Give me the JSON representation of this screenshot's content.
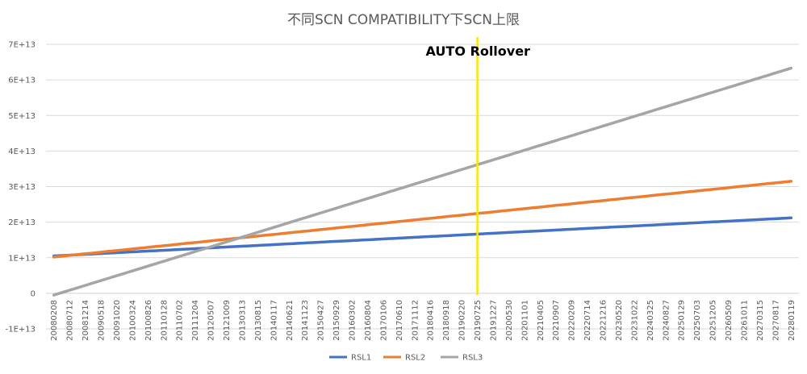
{
  "chart_data": {
    "type": "line",
    "title": "不同SCN COMPATIBILITY下SCN上限",
    "xlabel": "",
    "ylabel": "",
    "ylim": [
      -10000000000000.0,
      70000000000000.0
    ],
    "yticks": [
      -10000000000000.0,
      0,
      10000000000000.0,
      20000000000000.0,
      30000000000000.0,
      40000000000000.0,
      50000000000000.0,
      60000000000000.0,
      70000000000000.0
    ],
    "ytick_labels": [
      "-1E+13",
      "0",
      "1E+13",
      "2E+13",
      "3E+13",
      "4E+13",
      "5E+13",
      "6E+13",
      "7E+13"
    ],
    "x_tick_labels": [
      "20080208",
      "20080712",
      "20081214",
      "20090518",
      "20091020",
      "20100324",
      "20100826",
      "20110128",
      "20110702",
      "20111204",
      "20120507",
      "20121009",
      "20130313",
      "20130815",
      "20140117",
      "20140621",
      "20141123",
      "20150427",
      "20150929",
      "20160302",
      "20160804",
      "20170106",
      "20170610",
      "20171112",
      "20180416",
      "20180918",
      "20190220",
      "20190725",
      "20191227",
      "20200530",
      "20201101",
      "20210405",
      "20210907",
      "20220209",
      "20220714",
      "20221216",
      "20230520",
      "20231022",
      "20240325",
      "20240827",
      "20250129",
      "20250703",
      "20251205",
      "20260509",
      "20261011",
      "20270315",
      "20270817",
      "20280119"
    ],
    "grid": "horizontal",
    "legend_position": "bottom",
    "series": [
      {
        "name": "RSL1",
        "color": "#4472C4",
        "start_value": 10500000000000.0,
        "end_value": 21200000000000.0
      },
      {
        "name": "RSL2",
        "color": "#ED7D31",
        "start_value": 10200000000000.0,
        "end_value": 31500000000000.0
      },
      {
        "name": "RSL3",
        "color": "#A5A5A5",
        "start_value": -500000000000.0,
        "end_value": 63300000000000.0
      }
    ],
    "annotation": {
      "text": "AUTO Rollover",
      "at_x_label": "20190725",
      "color": "#FFE600"
    }
  }
}
